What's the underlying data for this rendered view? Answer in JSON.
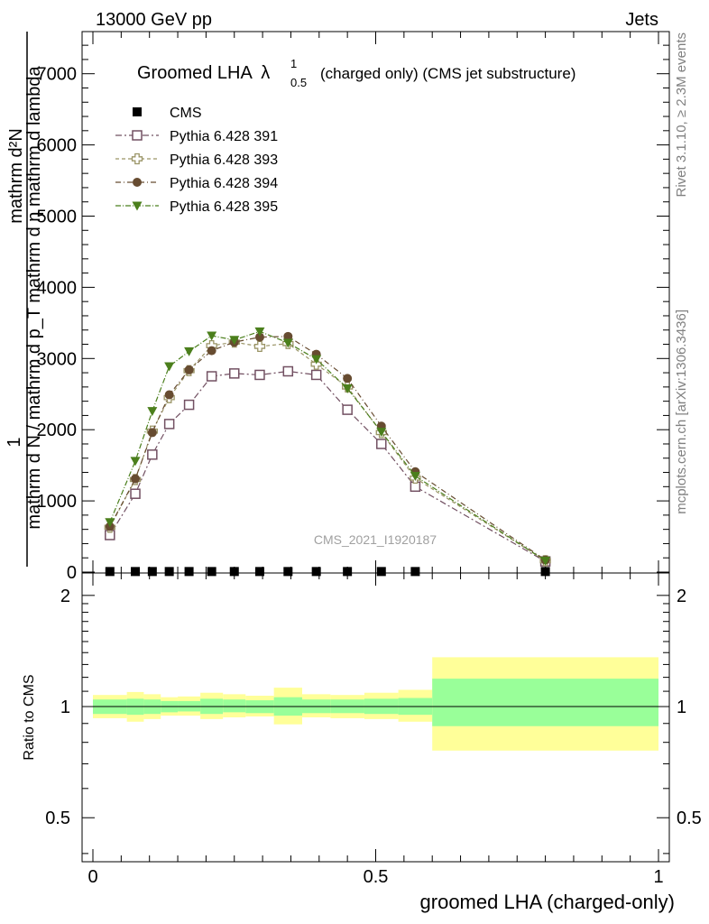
{
  "header": {
    "left": "13000 GeV pp",
    "right": "Jets"
  },
  "side_labels": {
    "rivet": "Rivet 3.1.10, ≥ 2.3M events",
    "mcplots": "mcplots.cern.ch [arXiv:1306.3436]"
  },
  "watermark": "CMS_2021_I1920187",
  "colors": {
    "cms": "#000000",
    "s391": "#725062",
    "s393": "#9a9466",
    "s394": "#674c31",
    "s395": "#4b7f1c",
    "band_outer": "#ffff99",
    "band_inner": "#99ff99"
  },
  "chart_data": [
    {
      "type": "scatter",
      "title": "Groomed LHA",
      "title_symbol": "λ",
      "title_sup": "1",
      "title_sub": "0.5",
      "title_suffix": "(charged only) (CMS jet substructure)",
      "ylabel_top": "1",
      "ylabel_main": "mathrm d N / mathrm d p_T mathrm d η   mathrm d lambda",
      "ylabel_num": "mathrm d²N",
      "ylabel_den": "mathrm d N / mathrm d p",
      "ylabel_den_sub": "T",
      "ylabel_extra": "mathrm d η",
      "xlim": [
        0,
        1
      ],
      "ylim": [
        0,
        7000
      ],
      "yticks": [
        {
          "v": 0,
          "label": "0"
        },
        {
          "v": 1000,
          "label": "1000"
        },
        {
          "v": 2000,
          "label": "2000"
        },
        {
          "v": 3000,
          "label": "3000"
        },
        {
          "v": 4000,
          "label": "4000"
        },
        {
          "v": 5000,
          "label": "5000"
        },
        {
          "v": 6000,
          "label": "6000"
        },
        {
          "v": 7000,
          "label": "7000"
        }
      ],
      "x": [
        0.03,
        0.075,
        0.105,
        0.135,
        0.17,
        0.21,
        0.25,
        0.295,
        0.345,
        0.395,
        0.45,
        0.51,
        0.57,
        0.8
      ],
      "series": [
        {
          "name": "CMS",
          "marker": "square-filled",
          "values": [
            8,
            8,
            8,
            8,
            8,
            8,
            8,
            8,
            8,
            8,
            8,
            8,
            8,
            8
          ]
        },
        {
          "name": "Pythia 6.428 391",
          "marker": "square-open",
          "values": [
            520,
            1100,
            1650,
            2080,
            2350,
            2750,
            2790,
            2770,
            2820,
            2770,
            2280,
            1800,
            1200,
            150
          ]
        },
        {
          "name": "Pythia 6.428 393",
          "marker": "cross-open",
          "values": [
            630,
            1300,
            1980,
            2450,
            2830,
            3180,
            3230,
            3170,
            3210,
            2920,
            2600,
            1960,
            1320,
            160
          ]
        },
        {
          "name": "Pythia 6.428 394",
          "marker": "circle-filled",
          "values": [
            640,
            1310,
            1960,
            2490,
            2840,
            3110,
            3230,
            3300,
            3310,
            3060,
            2720,
            2050,
            1410,
            170
          ]
        },
        {
          "name": "Pythia 6.428 395",
          "marker": "triangle-down-filled",
          "values": [
            700,
            1560,
            2260,
            2890,
            3100,
            3320,
            3260,
            3380,
            3220,
            2990,
            2580,
            1970,
            1350,
            160
          ]
        }
      ],
      "legend_position": "top-left"
    },
    {
      "type": "area",
      "ylabel": "Ratio to CMS",
      "xlabel": "groomed LHA (charged-only)",
      "xlim": [
        0,
        1
      ],
      "ylim": [
        0.38,
        2.3
      ],
      "log_y": true,
      "xticks": [
        {
          "v": 0,
          "label": "0"
        },
        {
          "v": 0.5,
          "label": "0.5"
        },
        {
          "v": 1,
          "label": "1"
        }
      ],
      "yticks": [
        {
          "v": 0.5,
          "label": "0.5"
        },
        {
          "v": 1,
          "label": "1"
        },
        {
          "v": 2,
          "label": "2"
        }
      ],
      "bins": [
        {
          "x0": 0.0,
          "x1": 0.06,
          "inner": [
            0.955,
            1.045
          ],
          "outer": [
            0.93,
            1.075
          ]
        },
        {
          "x0": 0.06,
          "x1": 0.09,
          "inner": [
            0.95,
            1.05
          ],
          "outer": [
            0.91,
            1.095
          ]
        },
        {
          "x0": 0.09,
          "x1": 0.12,
          "inner": [
            0.955,
            1.045
          ],
          "outer": [
            0.925,
            1.08
          ]
        },
        {
          "x0": 0.12,
          "x1": 0.15,
          "inner": [
            0.965,
            1.035
          ],
          "outer": [
            0.945,
            1.06
          ]
        },
        {
          "x0": 0.15,
          "x1": 0.19,
          "inner": [
            0.97,
            1.035
          ],
          "outer": [
            0.945,
            1.065
          ]
        },
        {
          "x0": 0.19,
          "x1": 0.23,
          "inner": [
            0.955,
            1.05
          ],
          "outer": [
            0.925,
            1.09
          ]
        },
        {
          "x0": 0.23,
          "x1": 0.27,
          "inner": [
            0.965,
            1.045
          ],
          "outer": [
            0.935,
            1.08
          ]
        },
        {
          "x0": 0.27,
          "x1": 0.32,
          "inner": [
            0.96,
            1.04
          ],
          "outer": [
            0.94,
            1.07
          ]
        },
        {
          "x0": 0.32,
          "x1": 0.37,
          "inner": [
            0.945,
            1.06
          ],
          "outer": [
            0.895,
            1.125
          ]
        },
        {
          "x0": 0.37,
          "x1": 0.42,
          "inner": [
            0.96,
            1.045
          ],
          "outer": [
            0.935,
            1.08
          ]
        },
        {
          "x0": 0.42,
          "x1": 0.48,
          "inner": [
            0.96,
            1.045
          ],
          "outer": [
            0.93,
            1.075
          ]
        },
        {
          "x0": 0.48,
          "x1": 0.54,
          "inner": [
            0.955,
            1.05
          ],
          "outer": [
            0.925,
            1.09
          ]
        },
        {
          "x0": 0.54,
          "x1": 0.6,
          "inner": [
            0.95,
            1.055
          ],
          "outer": [
            0.91,
            1.11
          ]
        },
        {
          "x0": 0.6,
          "x1": 1.0,
          "inner": [
            0.885,
            1.19
          ],
          "outer": [
            0.76,
            1.36
          ]
        }
      ]
    }
  ]
}
